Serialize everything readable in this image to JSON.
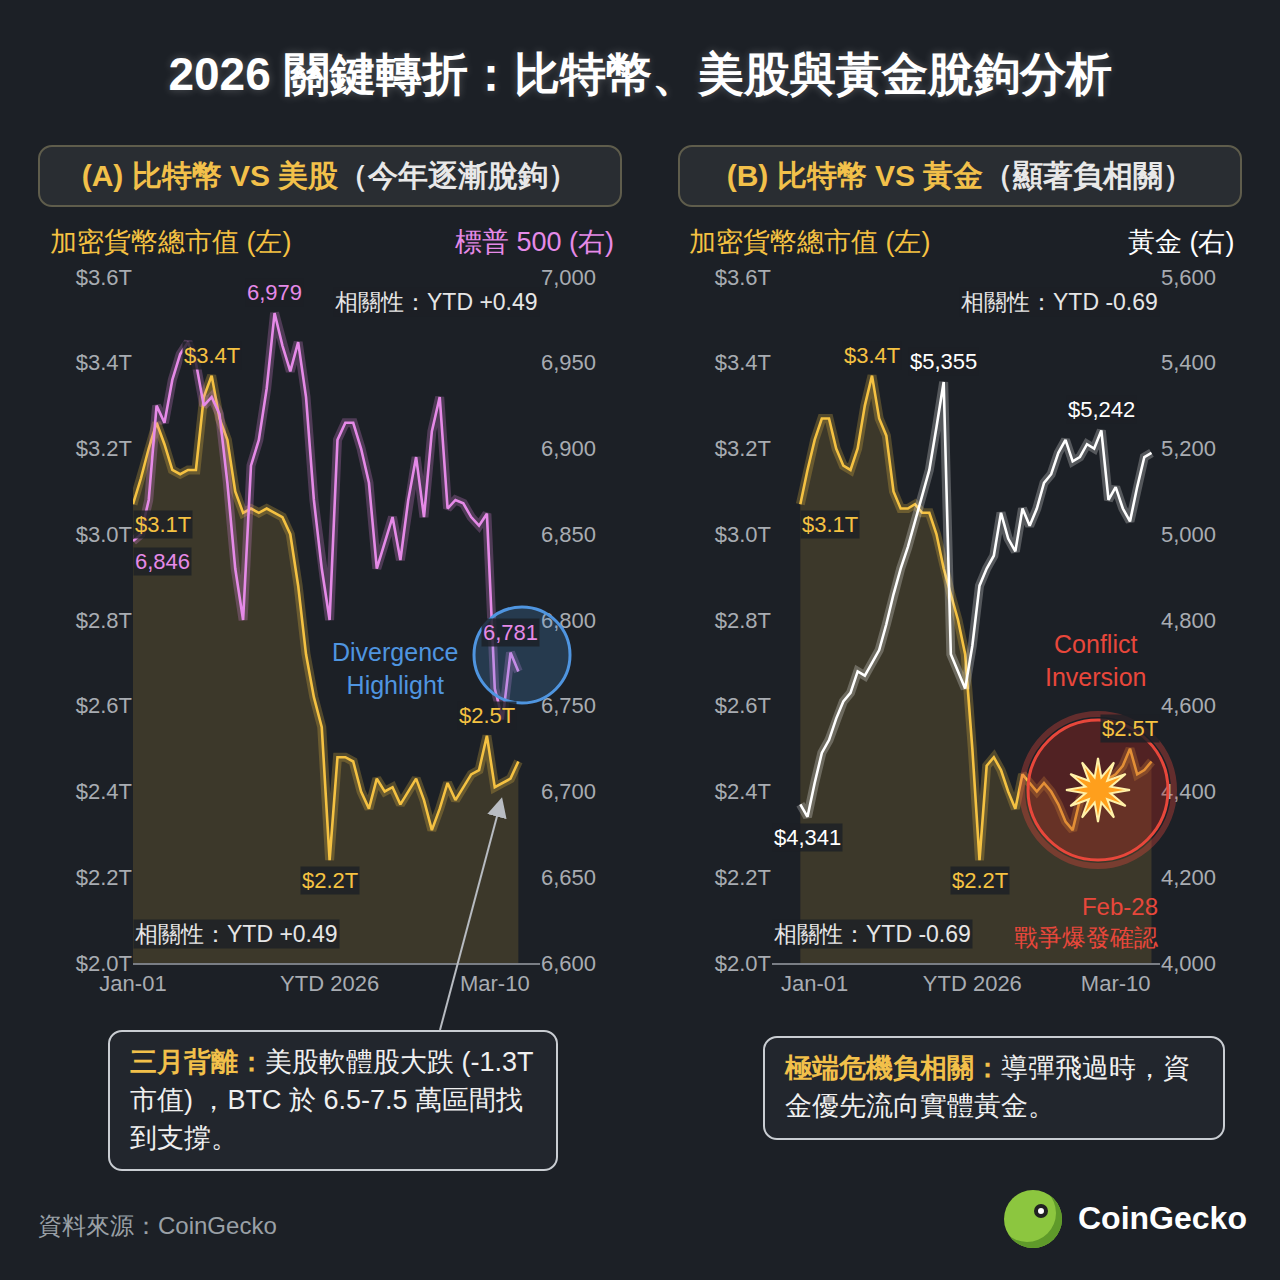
{
  "title": "2026 關鍵轉折：比特幣、美股與黃金脫鉤分析",
  "source": "資料來源：CoinGecko",
  "brand": "CoinGecko",
  "chart_data": [
    {
      "type": "line",
      "title": "(A) 比特幣 VS 美股（今年逐漸脫鉤）",
      "categories": [
        "Jan-01",
        null,
        null,
        null,
        null,
        null,
        null,
        null,
        null,
        null,
        null,
        null,
        null,
        null,
        null,
        null,
        null,
        null,
        null,
        null,
        null,
        null,
        null,
        null,
        null,
        "YTD 2026",
        null,
        null,
        null,
        null,
        null,
        null,
        null,
        null,
        null,
        null,
        null,
        null,
        null,
        null,
        null,
        null,
        null,
        null,
        null,
        null,
        "Mar-10",
        null,
        null,
        null
      ],
      "series": [
        {
          "name": "加密貨幣總市值 (左)",
          "color": "#f5c242",
          "values": [
            3.07,
            3.13,
            3.2,
            3.26,
            3.21,
            3.15,
            3.14,
            3.15,
            3.15,
            3.32,
            3.37,
            3.27,
            3.22,
            3.1,
            3.05,
            3.06,
            3.05,
            3.06,
            3.05,
            3.04,
            3.0,
            2.88,
            2.72,
            2.62,
            2.55,
            2.24,
            2.48,
            2.48,
            2.47,
            2.4,
            2.36,
            2.43,
            2.4,
            2.41,
            2.37,
            2.4,
            2.43,
            2.38,
            2.31,
            2.36,
            2.42,
            2.38,
            2.41,
            2.44,
            2.45,
            2.53,
            2.41,
            2.42,
            2.43,
            2.47
          ],
          "value_labels": [
            "$3.1T",
            null,
            null,
            null,
            null,
            null,
            null,
            null,
            null,
            null,
            "$3.4T",
            null,
            null,
            null,
            null,
            null,
            null,
            null,
            null,
            null,
            null,
            null,
            null,
            null,
            null,
            "$2.2T",
            null,
            null,
            null,
            null,
            null,
            null,
            null,
            null,
            null,
            null,
            null,
            null,
            null,
            null,
            null,
            null,
            null,
            null,
            null,
            "$2.5T",
            null,
            null,
            null,
            null
          ]
        },
        {
          "name": "標普 500 (右)",
          "color": "#e68ae8",
          "axis": "y2",
          "values": [
            6846,
            6850,
            6870,
            6925,
            6915,
            6940,
            6955,
            6962,
            6950,
            6925,
            6930,
            6920,
            6880,
            6830,
            6800,
            6890,
            6905,
            6935,
            6979,
            6960,
            6945,
            6962,
            6930,
            6870,
            6830,
            6800,
            6905,
            6915,
            6915,
            6900,
            6880,
            6830,
            6845,
            6860,
            6835,
            6870,
            6895,
            6860,
            6910,
            6930,
            6865,
            6870,
            6868,
            6860,
            6855,
            6862,
            6760,
            6742,
            6781,
            6770
          ],
          "value_labels": [
            "6,846",
            null,
            null,
            null,
            null,
            null,
            null,
            null,
            null,
            null,
            null,
            null,
            null,
            null,
            null,
            null,
            null,
            null,
            "6,979",
            null,
            null,
            null,
            null,
            null,
            null,
            null,
            null,
            null,
            null,
            null,
            null,
            null,
            null,
            null,
            null,
            null,
            null,
            null,
            null,
            null,
            null,
            null,
            null,
            null,
            null,
            null,
            null,
            null,
            "6,781",
            null
          ]
        }
      ],
      "ylim": [
        2.0,
        3.6
      ],
      "yticks": [
        {
          "value": 2.0,
          "label": "$2.0T"
        },
        {
          "value": 2.2,
          "label": "$2.2T"
        },
        {
          "value": 2.4,
          "label": "$2.4T"
        },
        {
          "value": 2.6,
          "label": "$2.6T"
        },
        {
          "value": 2.8,
          "label": "$2.8T"
        },
        {
          "value": 3.0,
          "label": "$3.0T"
        },
        {
          "value": 3.2,
          "label": "$3.2T"
        },
        {
          "value": 3.4,
          "label": "$3.4T"
        },
        {
          "value": 3.6,
          "label": "$3.6T"
        }
      ],
      "y2lim": [
        6600,
        7000
      ],
      "y2ticks": [
        {
          "value": 6600,
          "label": "6,600"
        },
        {
          "value": 6650,
          "label": "6,650"
        },
        {
          "value": 6700,
          "label": "6,700"
        },
        {
          "value": 6750,
          "label": "6,750"
        },
        {
          "value": 6800,
          "label": "6,800"
        },
        {
          "value": 6850,
          "label": "6,850"
        },
        {
          "value": 6900,
          "label": "6,900"
        },
        {
          "value": 6950,
          "label": "6,950"
        },
        {
          "value": 7000,
          "label": "7,000"
        }
      ],
      "grid": false,
      "annotations": [
        "相關性：YTD +0.49",
        "相關性：YTD +0.49",
        "Divergence Highlight"
      ],
      "callout": {
        "heading": "三月背離：",
        "text": "美股軟體股大跌 (-1.3T 市值) ，BTC 於 6.5-7.5 萬區間找到支撐。"
      }
    },
    {
      "type": "line",
      "title": "(B) 比特幣 VS 黃金（顯著負相關）",
      "categories": [
        null,
        null,
        "Jan-01",
        null,
        null,
        null,
        null,
        null,
        null,
        null,
        null,
        null,
        null,
        null,
        null,
        null,
        null,
        null,
        null,
        null,
        null,
        null,
        null,
        null,
        "YTD 2026",
        null,
        null,
        null,
        null,
        null,
        null,
        null,
        null,
        null,
        null,
        null,
        null,
        null,
        null,
        null,
        null,
        null,
        null,
        null,
        "Mar-10",
        null,
        null,
        null,
        null,
        null
      ],
      "series": [
        {
          "name": "加密貨幣總市值 (左)",
          "color": "#f5c242",
          "values": [
            3.07,
            3.15,
            3.22,
            3.27,
            3.27,
            3.2,
            3.16,
            3.15,
            3.2,
            3.3,
            3.37,
            3.27,
            3.23,
            3.1,
            3.06,
            3.06,
            3.07,
            3.05,
            3.05,
            3.0,
            2.92,
            2.86,
            2.8,
            2.72,
            2.5,
            2.24,
            2.46,
            2.48,
            2.45,
            2.4,
            2.36,
            2.44,
            2.42,
            2.4,
            2.42,
            2.4,
            2.37,
            2.33,
            2.31,
            2.38,
            2.4,
            2.42,
            2.42,
            2.43,
            2.44,
            2.46,
            2.5,
            2.44,
            2.45,
            2.47
          ],
          "value_labels": [
            "$3.1T",
            null,
            null,
            null,
            null,
            null,
            null,
            null,
            null,
            null,
            "$3.4T",
            null,
            null,
            null,
            null,
            null,
            null,
            null,
            null,
            null,
            null,
            null,
            null,
            null,
            null,
            "$2.2T",
            null,
            null,
            null,
            null,
            null,
            null,
            null,
            null,
            null,
            null,
            null,
            null,
            null,
            null,
            null,
            null,
            null,
            null,
            null,
            null,
            "$2.5T",
            null,
            null,
            null
          ]
        },
        {
          "name": "黃金 (右)",
          "color": "#ffffff",
          "axis": "y2",
          "values": [
            4370,
            4341,
            4420,
            4490,
            4520,
            4570,
            4610,
            4630,
            4680,
            4670,
            4700,
            4730,
            4790,
            4860,
            4920,
            4970,
            5030,
            5090,
            5150,
            5250,
            5355,
            4720,
            4680,
            4640,
            4740,
            4880,
            4920,
            4950,
            5050,
            4990,
            4960,
            5060,
            5020,
            5060,
            5120,
            5140,
            5190,
            5220,
            5170,
            5180,
            5210,
            5200,
            5242,
            5080,
            5110,
            5060,
            5030,
            5110,
            5180,
            5190
          ],
          "value_labels": [
            null,
            "$4,341",
            null,
            null,
            null,
            null,
            null,
            null,
            null,
            null,
            null,
            null,
            null,
            null,
            null,
            null,
            null,
            null,
            null,
            null,
            "$5,355",
            null,
            null,
            null,
            null,
            null,
            null,
            null,
            null,
            null,
            null,
            null,
            null,
            null,
            null,
            null,
            null,
            null,
            null,
            null,
            null,
            null,
            "$5,242",
            null,
            null,
            null,
            null,
            null,
            null,
            null
          ]
        }
      ],
      "ylim": [
        2.0,
        3.6
      ],
      "yticks": [
        {
          "value": 2.0,
          "label": "$2.0T"
        },
        {
          "value": 2.2,
          "label": "$2.2T"
        },
        {
          "value": 2.4,
          "label": "$2.4T"
        },
        {
          "value": 2.6,
          "label": "$2.6T"
        },
        {
          "value": 2.8,
          "label": "$2.8T"
        },
        {
          "value": 3.0,
          "label": "$3.0T"
        },
        {
          "value": 3.2,
          "label": "$3.2T"
        },
        {
          "value": 3.4,
          "label": "$3.4T"
        },
        {
          "value": 3.6,
          "label": "$3.6T"
        }
      ],
      "y2lim": [
        4000,
        5600
      ],
      "y2ticks": [
        {
          "value": 4000,
          "label": "4,000"
        },
        {
          "value": 4200,
          "label": "4,200"
        },
        {
          "value": 4400,
          "label": "4,400"
        },
        {
          "value": 4600,
          "label": "4,600"
        },
        {
          "value": 4800,
          "label": "4,800"
        },
        {
          "value": 5000,
          "label": "5,000"
        },
        {
          "value": 5200,
          "label": "5,200"
        },
        {
          "value": 5400,
          "label": "5,400"
        },
        {
          "value": 5600,
          "label": "5,600"
        }
      ],
      "grid": false,
      "annotations": [
        "相關性：YTD -0.69",
        "相關性：YTD -0.69",
        "Conflict Inversion",
        "Feb-28 戰爭爆發確認"
      ],
      "callout": {
        "heading": "極端危機負相關：",
        "text": "導彈飛過時，資金優先流向實體黃金。"
      }
    }
  ]
}
